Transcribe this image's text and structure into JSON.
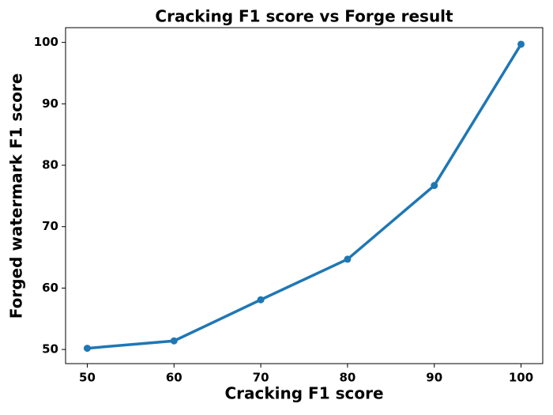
{
  "chart_data": {
    "type": "line",
    "title": "Cracking F1 score vs Forge result",
    "xlabel": "Cracking F1 score",
    "ylabel": "Forged watermark F1 score",
    "x": [
      50,
      60,
      70,
      80,
      90,
      100
    ],
    "series": [
      {
        "color": "#1f77b4",
        "values": [
          50.2,
          51.4,
          58.1,
          64.7,
          76.7,
          99.7
        ]
      }
    ],
    "xlim": [
      47.5,
      102.5
    ],
    "xticks": [
      50,
      60,
      70,
      80,
      90,
      100
    ],
    "ylim": [
      47.7,
      102.4
    ],
    "yticks": [
      50,
      60,
      70,
      80,
      90,
      100
    ]
  }
}
